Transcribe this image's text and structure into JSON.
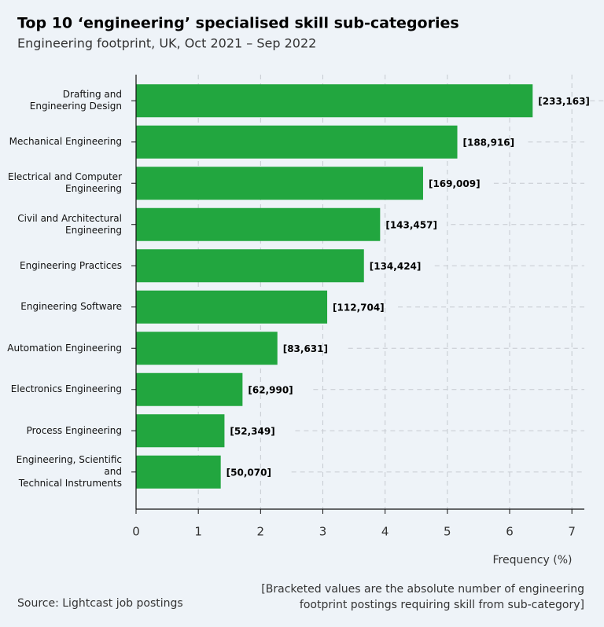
{
  "chart_data": {
    "type": "bar",
    "orientation": "horizontal",
    "title": "Top 10 ‘engineering’ specialised skill sub-categories",
    "subtitle": "Engineering footprint, UK, Oct 2021 – Sep 2022",
    "x_label": "Frequency (%)",
    "source": "Source: Lightcast job postings",
    "note": "[Bracketed values are the absolute number of engineering\nfootprint postings requiring skill from sub-category]",
    "categories": [
      "Drafting and\nEngineering Design",
      "Mechanical Engineering",
      "Electrical and Computer\nEngineering",
      "Civil and Architectural\nEngineering",
      "Engineering Practices",
      "Engineering Software",
      "Automation Engineering",
      "Electronics Engineering",
      "Process Engineering",
      "Engineering, Scientific and\nTechnical Instruments"
    ],
    "values": [
      6.37,
      5.16,
      4.61,
      3.92,
      3.66,
      3.07,
      2.27,
      1.71,
      1.42,
      1.36
    ],
    "counts": [
      233163,
      188916,
      169009,
      143457,
      134424,
      112704,
      83631,
      62990,
      52349,
      50070
    ],
    "count_labels": [
      "[233,163]",
      "[188,916]",
      "[169,009]",
      "[143,457]",
      "[134,424]",
      "[112,704]",
      "[83,631]",
      "[62,990]",
      "[52,349]",
      "[50,070]"
    ],
    "color": "#22a63f",
    "xlim": [
      0,
      7.2
    ],
    "xticks": [
      0,
      1,
      2,
      3,
      4,
      5,
      6,
      7
    ],
    "grid": true
  }
}
